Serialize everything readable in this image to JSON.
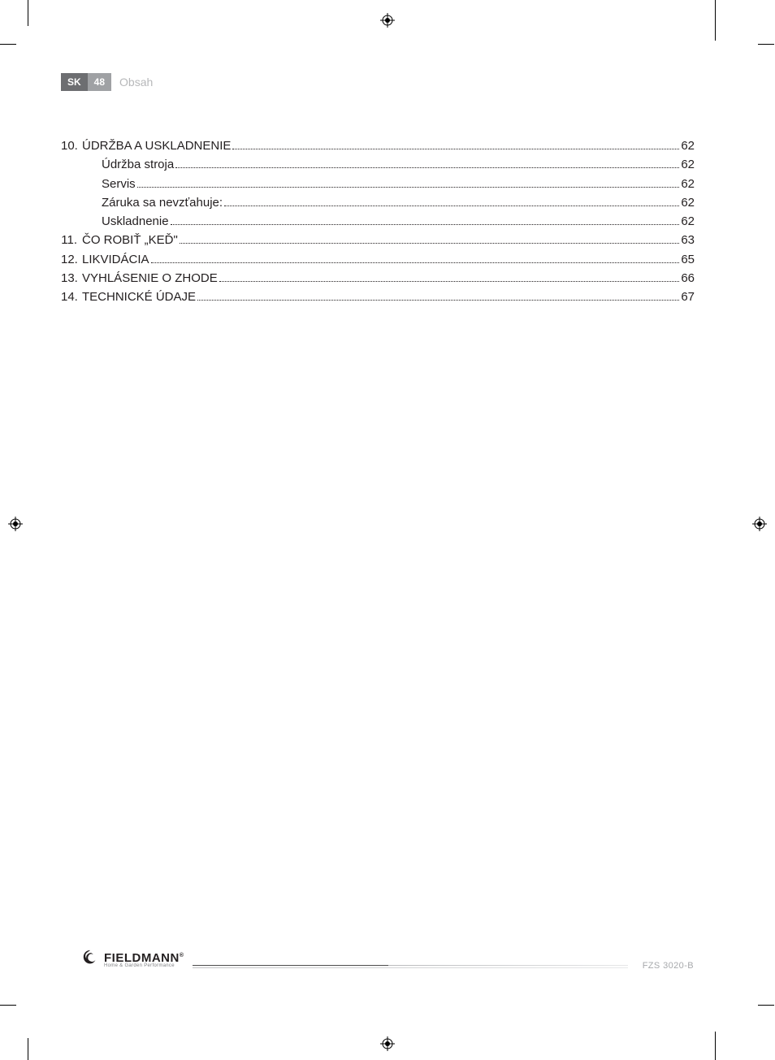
{
  "header": {
    "lang": "SK",
    "page": "48",
    "section": "Obsah"
  },
  "toc": [
    {
      "num": "10.",
      "title": "ÚDRŽBA A USKLADNENIE",
      "page": "62",
      "level": 0
    },
    {
      "num": "",
      "title": "Údržba stroja",
      "page": "62",
      "level": 1
    },
    {
      "num": "",
      "title": "Servis",
      "page": "62",
      "level": 1
    },
    {
      "num": "",
      "title": "Záruka sa nevzťahuje:",
      "page": "62",
      "level": 1
    },
    {
      "num": "",
      "title": "Uskladnenie",
      "page": "62",
      "level": 1
    },
    {
      "num": "11.",
      "title": "ČO ROBIŤ „KEĎ\"",
      "page": "63",
      "level": 0
    },
    {
      "num": "12.",
      "title": "LIKVIDÁCIA",
      "page": "65",
      "level": 0
    },
    {
      "num": "13.",
      "title": "VYHLÁSENIE O ZHODE ",
      "page": "66",
      "level": 0
    },
    {
      "num": "14.",
      "title": "TECHNICKÉ ÚDAJE",
      "page": "67",
      "level": 0
    }
  ],
  "footer": {
    "brand_name": "FIELDMANN",
    "brand_tag": "Home & Garden Performance",
    "model": "FZS 3020-B"
  }
}
